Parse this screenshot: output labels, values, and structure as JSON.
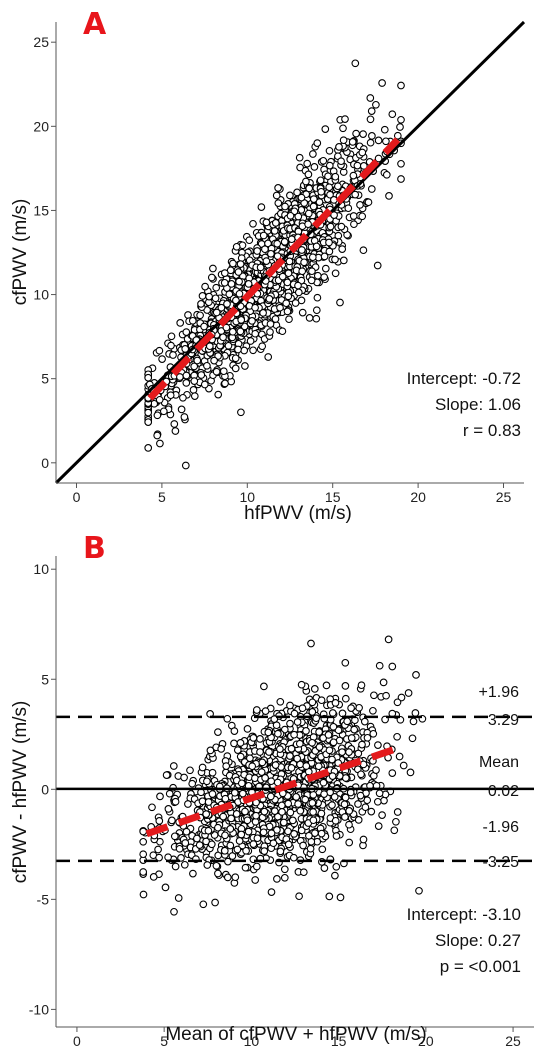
{
  "colors": {
    "points": "#000000",
    "fit_line": "#e31a1c",
    "panel_letter": "#e8151b",
    "reference": "#000000"
  },
  "chart_data": [
    {
      "panel": "A",
      "type": "scatter",
      "xlabel": "hfPWV (m/s)",
      "ylabel": "cfPWV (m/s)",
      "xlim": [
        -1.2,
        26.2
      ],
      "ylim": [
        -1.2,
        26.2
      ],
      "xticks": [
        0,
        5,
        10,
        15,
        20,
        25
      ],
      "yticks": [
        0,
        5,
        10,
        15,
        20,
        25
      ],
      "n_points": 1500,
      "point_cloud": {
        "x_mean": 11.2,
        "x_sd": 3.1,
        "x_range": [
          4.2,
          19.0
        ],
        "intercept": -0.72,
        "slope": 1.06,
        "r": 0.83
      },
      "identity_line": {
        "slope": 1,
        "intercept": 0,
        "style": "solid black"
      },
      "fit_line": {
        "intercept": -0.72,
        "slope": 1.06,
        "x_range": [
          4.3,
          18.8
        ],
        "style": "dashed red"
      },
      "annotations": [
        "Intercept: -0.72",
        "Slope: 1.06",
        "r = 0.83"
      ]
    },
    {
      "panel": "B",
      "type": "scatter",
      "xlabel": "Mean of cfPWV + hfPWV (m/s)",
      "ylabel": "cfPWV - hfPWV (m/s)",
      "xlim": [
        -1.2,
        26.2
      ],
      "ylim": [
        -10.8,
        10.6
      ],
      "xticks": [
        0,
        5,
        10,
        15,
        20,
        25
      ],
      "yticks": [
        -10,
        -5,
        0,
        5,
        10
      ],
      "n_points": 1500,
      "point_cloud": {
        "x_mean": 11.5,
        "x_sd": 3.0,
        "x_range": [
          3.8,
          19.8
        ],
        "intercept": -3.1,
        "slope": 0.27
      },
      "reference_lines": [
        {
          "name": "+1.96",
          "value": 3.29,
          "label_above": "+1.96",
          "label_below": "3.29",
          "style": "dashed"
        },
        {
          "name": "Mean",
          "value": 0.02,
          "label_above": "Mean",
          "label_below": "0.02",
          "style": "solid"
        },
        {
          "name": "-1.96",
          "value": -3.25,
          "label_above": "-1.96",
          "label_below": "-3.25",
          "style": "dashed"
        }
      ],
      "fit_line": {
        "intercept": -3.1,
        "slope": 0.27,
        "x_range": [
          4.0,
          18.5
        ],
        "style": "dashed red"
      },
      "annotations": [
        "Intercept: -3.10",
        "Slope: 0.27",
        "p = <0.001"
      ]
    }
  ]
}
